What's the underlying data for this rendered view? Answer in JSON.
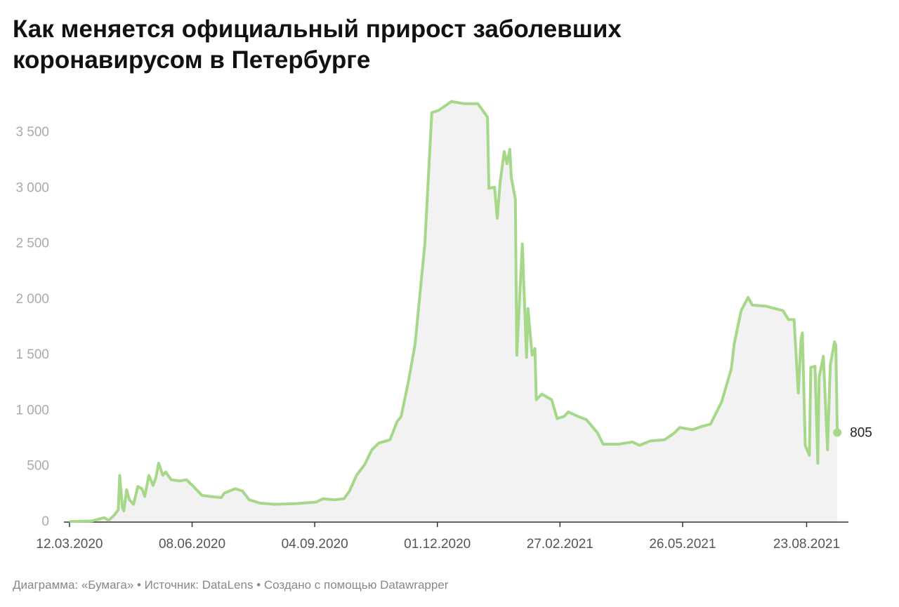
{
  "chart_data": {
    "type": "line",
    "title": "Как меняется официальный прирост заболевших коронавирусом в Петербурге",
    "source": "Диаграмма: «Бумага» • Источник: DataLens • Создано с помощью Datawrapper",
    "color": "#a6d88a",
    "area_color": "#f2f2f2",
    "grid": false,
    "x": [
      "12.03.2020",
      "28.03.2020",
      "06.04.2020",
      "09.04.2020",
      "13.04.2020",
      "16.04.2020",
      "17.04.2020",
      "19.04.2020",
      "20.04.2020",
      "22.04.2020",
      "24.04.2020",
      "27.04.2020",
      "30.04.2020",
      "03.05.2020",
      "05.05.2020",
      "08.05.2020",
      "11.05.2020",
      "13.05.2020",
      "15.05.2020",
      "18.05.2020",
      "20.05.2020",
      "24.05.2020",
      "30.05.2020",
      "04.06.2020",
      "09.06.2020",
      "15.06.2020",
      "21.06.2020",
      "29.06.2020",
      "01.07.2020",
      "09.07.2020",
      "14.07.2020",
      "19.07.2020",
      "27.07.2020",
      "06.08.2020",
      "21.08.2020",
      "05.09.2020",
      "10.09.2020",
      "18.09.2020",
      "25.09.2020",
      "29.09.2020",
      "04.10.2020",
      "10.10.2020",
      "15.10.2020",
      "20.10.2020",
      "28.10.2020",
      "02.11.2020",
      "05.11.2020",
      "10.11.2020",
      "15.11.2020",
      "22.11.2020",
      "27.11.2020",
      "02.12.2020",
      "11.12.2020",
      "20.12.2020",
      "30.12.2020",
      "06.01.2021",
      "07.01.2021",
      "11.01.2021",
      "13.01.2021",
      "15.01.2021",
      "18.01.2021",
      "20.01.2021",
      "22.01.2021",
      "23.01.2021",
      "26.01.2021",
      "27.01.2021",
      "31.01.2021",
      "03.02.2021",
      "04.02.2021",
      "07.02.2021",
      "09.02.2021",
      "10.02.2021",
      "14.02.2021",
      "21.02.2021",
      "25.02.2021",
      "02.03.2021",
      "05.03.2021",
      "12.03.2021",
      "18.03.2021",
      "26.03.2021",
      "30.03.2021",
      "10.04.2021",
      "20.04.2021",
      "25.04.2021",
      "03.05.2021",
      "13.05.2021",
      "20.05.2021",
      "24.05.2021",
      "02.06.2021",
      "09.06.2021",
      "15.06.2021",
      "23.06.2021",
      "30.06.2021",
      "02.07.2021",
      "07.07.2021",
      "12.07.2021",
      "15.07.2021",
      "25.07.2021",
      "06.08.2021",
      "10.08.2021",
      "14.08.2021",
      "17.08.2021",
      "19.08.2021",
      "20.08.2021",
      "22.08.2021",
      "25.08.2021",
      "26.08.2021",
      "29.08.2021",
      "31.08.2021",
      "01.09.2021",
      "04.09.2021",
      "07.09.2021",
      "09.09.2021",
      "12.09.2021",
      "13.09.2021",
      "14.09.2021"
    ],
    "values": [
      5,
      10,
      40,
      15,
      60,
      110,
      420,
      130,
      100,
      290,
      200,
      160,
      320,
      300,
      230,
      420,
      330,
      400,
      530,
      420,
      450,
      380,
      370,
      380,
      320,
      240,
      230,
      220,
      260,
      300,
      280,
      200,
      170,
      160,
      165,
      180,
      210,
      200,
      210,
      280,
      420,
      520,
      650,
      710,
      740,
      900,
      950,
      1250,
      1600,
      2500,
      3680,
      3700,
      3780,
      3760,
      3760,
      3640,
      3000,
      3010,
      2730,
      3050,
      3330,
      3220,
      3350,
      3100,
      2900,
      1500,
      2500,
      1480,
      1920,
      1500,
      1560,
      1100,
      1150,
      1100,
      930,
      950,
      990,
      950,
      920,
      800,
      700,
      700,
      720,
      690,
      730,
      740,
      800,
      850,
      830,
      860,
      880,
      1080,
      1380,
      1600,
      1900,
      2020,
      1950,
      1940,
      1900,
      1820,
      1820,
      1160,
      1640,
      1700,
      690,
      600,
      1390,
      1400,
      530,
      1300,
      1490,
      650,
      1410,
      1620,
      1590,
      805
    ],
    "xlim": [
      "08.03.2020",
      "22.09.2021"
    ],
    "xticks": [
      "12.03.2020",
      "08.06.2020",
      "04.09.2020",
      "01.12.2020",
      "27.02.2021",
      "26.05.2021",
      "23.08.2021"
    ],
    "ylim": [
      0,
      3800
    ],
    "yticks": [
      0,
      500,
      {
        "value": 1000,
        "label": "1 000"
      },
      {
        "value": 1500,
        "label": "1 500"
      },
      {
        "value": 2000,
        "label": "2 000"
      },
      {
        "value": 2500,
        "label": "2 500"
      },
      {
        "value": 3000,
        "label": "3 000"
      },
      {
        "value": 3500,
        "label": "3 500"
      }
    ]
  }
}
